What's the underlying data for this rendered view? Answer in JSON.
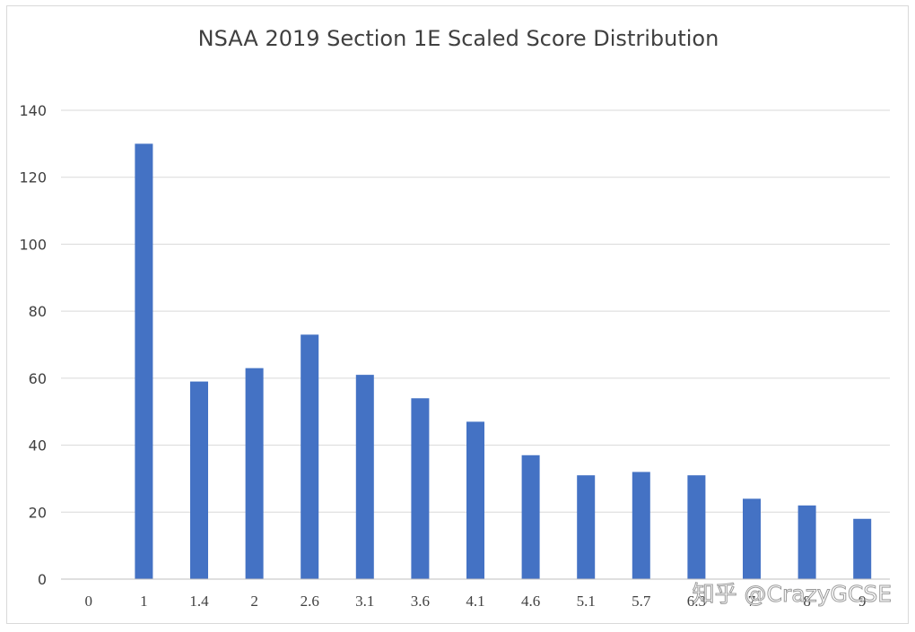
{
  "chart_data": {
    "type": "bar",
    "title": "NSAA 2019 Section 1E Scaled Score Distribution",
    "xlabel": "",
    "ylabel": "",
    "categories": [
      "0",
      "1",
      "1.4",
      "2",
      "2.6",
      "3.1",
      "3.6",
      "4.1",
      "4.6",
      "5.1",
      "5.7",
      "6.3",
      "7",
      "8",
      "9"
    ],
    "values": [
      0,
      130,
      59,
      63,
      73,
      61,
      54,
      47,
      37,
      31,
      32,
      31,
      24,
      22,
      18
    ],
    "ylim": [
      0,
      140
    ],
    "yticks": [
      0,
      20,
      40,
      60,
      80,
      100,
      120,
      140
    ],
    "grid": true,
    "legend": "none",
    "bar_color": "#4472c4"
  },
  "watermark": "知乎 @CrazyGCSE"
}
